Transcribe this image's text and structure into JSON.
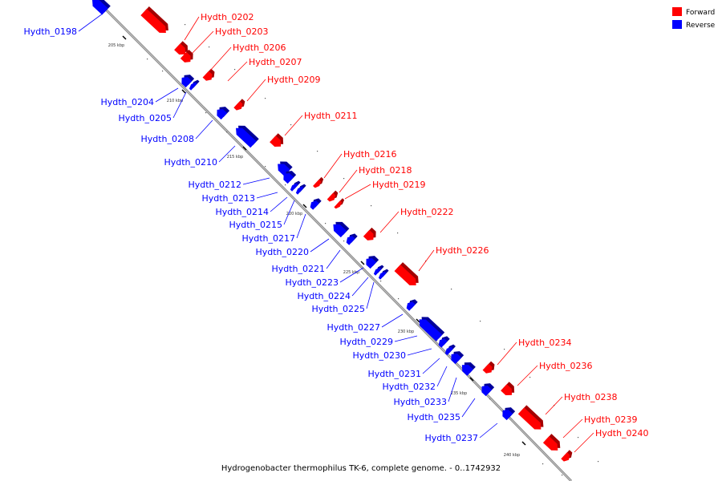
{
  "caption": "Hydrogenobacter thermophilus TK-6, complete genome. - 0..1742932",
  "legend": [
    {
      "label": "Forward",
      "color": "#ff0000"
    },
    {
      "label": "Reverse",
      "color": "#0000ff"
    }
  ],
  "colors": {
    "forward": "#ff0000",
    "reverse": "#0000ff",
    "backbone": "#888888"
  },
  "ticks": [
    "205 kbp",
    "210 kbp",
    "215 kbp",
    "220 kbp",
    "225 kbp",
    "230 kbp",
    "235 kbp",
    "240 kbp"
  ],
  "genes": [
    {
      "name": "Hydth_0198",
      "strand": "reverse"
    },
    {
      "name": "Hydth_0202",
      "strand": "forward"
    },
    {
      "name": "Hydth_0203",
      "strand": "forward"
    },
    {
      "name": "Hydth_0206",
      "strand": "forward"
    },
    {
      "name": "Hydth_0207",
      "strand": "forward"
    },
    {
      "name": "Hydth_0209",
      "strand": "forward"
    },
    {
      "name": "Hydth_0204",
      "strand": "reverse"
    },
    {
      "name": "Hydth_0205",
      "strand": "reverse"
    },
    {
      "name": "Hydth_0208",
      "strand": "reverse"
    },
    {
      "name": "Hydth_0211",
      "strand": "forward"
    },
    {
      "name": "Hydth_0210",
      "strand": "reverse"
    },
    {
      "name": "Hydth_0216",
      "strand": "forward"
    },
    {
      "name": "Hydth_0218",
      "strand": "forward"
    },
    {
      "name": "Hydth_0219",
      "strand": "forward"
    },
    {
      "name": "Hydth_0212",
      "strand": "reverse"
    },
    {
      "name": "Hydth_0213",
      "strand": "reverse"
    },
    {
      "name": "Hydth_0214",
      "strand": "reverse"
    },
    {
      "name": "Hydth_0222",
      "strand": "forward"
    },
    {
      "name": "Hydth_0215",
      "strand": "reverse"
    },
    {
      "name": "Hydth_0217",
      "strand": "reverse"
    },
    {
      "name": "Hydth_0226",
      "strand": "forward"
    },
    {
      "name": "Hydth_0220",
      "strand": "reverse"
    },
    {
      "name": "Hydth_0221",
      "strand": "reverse"
    },
    {
      "name": "Hydth_0223",
      "strand": "reverse"
    },
    {
      "name": "Hydth_0224",
      "strand": "reverse"
    },
    {
      "name": "Hydth_0225",
      "strand": "reverse"
    },
    {
      "name": "Hydth_0227",
      "strand": "reverse"
    },
    {
      "name": "Hydth_0229",
      "strand": "reverse"
    },
    {
      "name": "Hydth_0234",
      "strand": "forward"
    },
    {
      "name": "Hydth_0230",
      "strand": "reverse"
    },
    {
      "name": "Hydth_0236",
      "strand": "forward"
    },
    {
      "name": "Hydth_0231",
      "strand": "reverse"
    },
    {
      "name": "Hydth_0232",
      "strand": "reverse"
    },
    {
      "name": "Hydth_0238",
      "strand": "forward"
    },
    {
      "name": "Hydth_0233",
      "strand": "reverse"
    },
    {
      "name": "Hydth_0235",
      "strand": "reverse"
    },
    {
      "name": "Hydth_0239",
      "strand": "forward"
    },
    {
      "name": "Hydth_0240",
      "strand": "forward"
    },
    {
      "name": "Hydth_0237",
      "strand": "reverse"
    }
  ]
}
